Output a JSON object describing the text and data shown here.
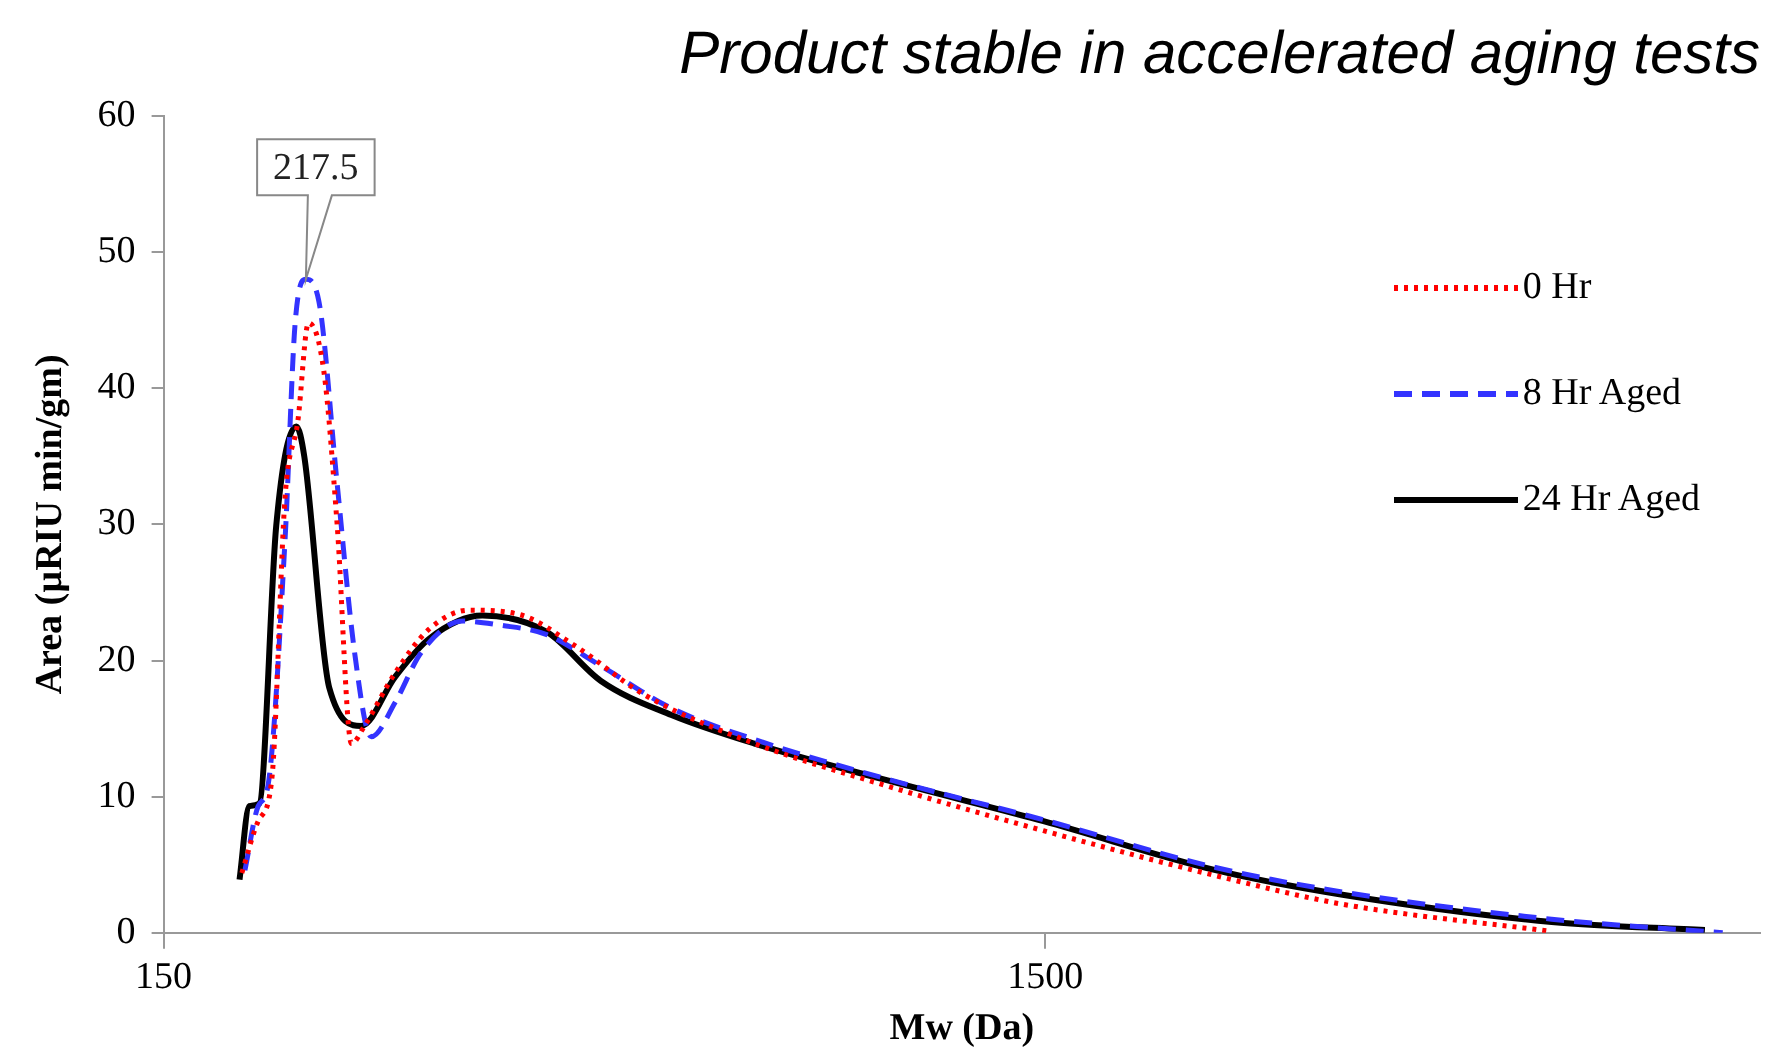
{
  "chart_data": {
    "type": "line",
    "title": "Product stable in accelerated aging tests",
    "xlabel": "Mw (Da)",
    "ylabel": "Area (µRIU min/gm)",
    "log": "x",
    "xlim": [
      150,
      9700
    ],
    "xticks": [
      150,
      1500
    ],
    "ylim": [
      0,
      60
    ],
    "yticks": [
      0,
      10,
      20,
      30,
      40,
      50,
      60
    ],
    "grid": false,
    "legend": "top right",
    "marker": "none",
    "annotations": [
      {
        "text": "217.5",
        "x": 217.5,
        "y": 48
      }
    ],
    "series": [
      {
        "name": "0 Hr",
        "color": "#ff0000",
        "line_style": "dotted",
        "x": [
          184,
          192,
          199,
          206,
          213,
          219,
          228,
          236,
          245,
          253.5,
          274,
          300,
          333,
          379,
          439,
          526,
          702,
          979,
          1493,
          2340,
          3260,
          5630
        ],
        "values": [
          4.4,
          8.2,
          11.3,
          32,
          37.6,
          44.8,
          41.2,
          30,
          13.9,
          15.2,
          19,
          22.3,
          23.7,
          23.4,
          21.1,
          17.5,
          13.9,
          10.9,
          7.5,
          4.2,
          2.1,
          0.1
        ]
      },
      {
        "name": "8 Hr Aged",
        "color": "#3333ff",
        "line_style": "dashed",
        "x": [
          185.5,
          192,
          197,
          206,
          211.5,
          217.5,
          225,
          236,
          247,
          258,
          275,
          294,
          328,
          361,
          408,
          470,
          565,
          702,
          979,
          1493,
          2340,
          3260,
          5630,
          8800
        ],
        "values": [
          4.6,
          9.3,
          10.8,
          28.9,
          44.8,
          48,
          46.4,
          33,
          20.6,
          14.4,
          17,
          20.6,
          22.9,
          22.6,
          21.9,
          19.6,
          16.5,
          14.2,
          11.4,
          8.3,
          4.8,
          3,
          1,
          0
        ]
      },
      {
        "name": "24 Hr Aged",
        "color": "#000000",
        "line_style": "solid",
        "x": [
          182.9,
          187.6,
          192.6,
          201.3,
          212.2,
          216.6,
          231.2,
          251.3,
          274.6,
          300.1,
          345,
          408,
          470,
          565,
          702,
          979,
          1493,
          2340,
          3260,
          5630,
          8400
        ],
        "values": [
          3.9,
          9.3,
          9.5,
          29.9,
          37.2,
          35,
          18,
          15.2,
          18.8,
          21.6,
          23.3,
          22.1,
          18.5,
          16,
          13.9,
          11.3,
          8.2,
          4.6,
          2.8,
          0.8,
          0.2
        ]
      }
    ]
  }
}
